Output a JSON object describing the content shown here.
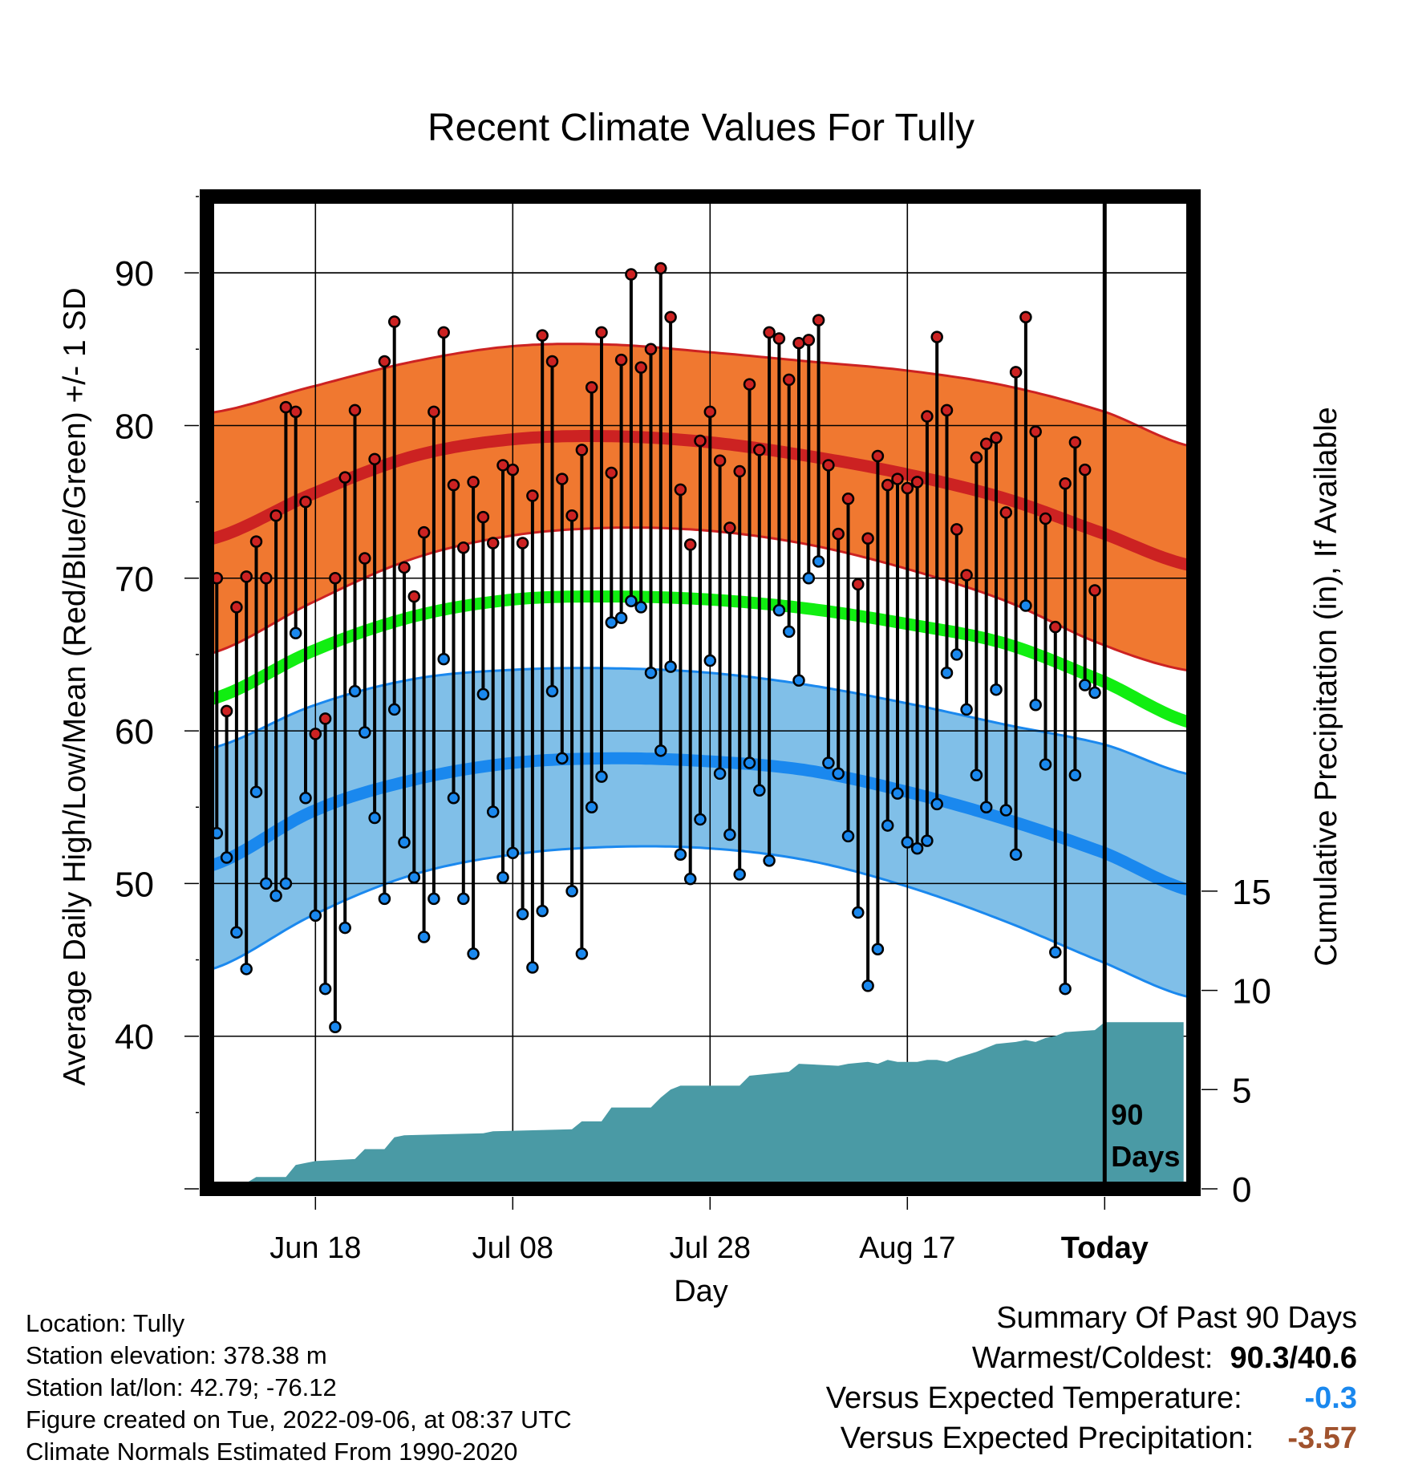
{
  "chart_data": {
    "type": "line",
    "title": "Recent Climate Values For Tully",
    "xlabel": "Day",
    "ylabel": "Average Daily High/Low/Mean (Red/Blue/Green) +/- 1 SD",
    "y2label": "Cumulative Precipitation (in), If Available",
    "ylim": [
      30,
      95
    ],
    "y2lim": [
      0,
      50
    ],
    "x_ticks": [
      {
        "day": 10,
        "label": "Jun 18"
      },
      {
        "day": 30,
        "label": "Jul 08"
      },
      {
        "day": 50,
        "label": "Jul 28"
      },
      {
        "day": 70,
        "label": "Aug 17"
      },
      {
        "day": 90,
        "label": "Today"
      }
    ],
    "y_ticks": [
      40,
      50,
      60,
      70,
      80,
      90
    ],
    "y2_ticks": [
      0,
      5,
      10,
      15
    ],
    "xlim": [
      -1,
      99
    ],
    "today_day": 90,
    "today_label": [
      "90",
      "Days"
    ],
    "series": [
      {
        "name": "Normal High",
        "color": "#cc2222",
        "band_color": "#f07830",
        "x": [
          -1,
          10,
          20,
          30,
          40,
          50,
          60,
          70,
          80,
          90,
          99
        ],
        "mean": [
          72.5,
          75.6,
          78.0,
          79.1,
          79.3,
          78.9,
          78.0,
          76.8,
          75.2,
          72.9,
          70.8
        ],
        "upper": [
          80.8,
          82.6,
          84.2,
          85.2,
          85.3,
          84.8,
          84.2,
          83.6,
          82.6,
          80.9,
          78.6
        ],
        "lower": [
          65.0,
          68.5,
          71.3,
          72.8,
          73.3,
          73.1,
          72.2,
          70.6,
          68.5,
          65.6,
          63.9
        ]
      },
      {
        "name": "Normal Mean",
        "color": "#11ee11",
        "x": [
          -1,
          10,
          20,
          30,
          40,
          50,
          60,
          70,
          80,
          90,
          99
        ],
        "mean": [
          62.0,
          65.3,
          67.5,
          68.6,
          68.8,
          68.6,
          68.0,
          67.0,
          65.7,
          63.2,
          60.5
        ]
      },
      {
        "name": "Normal Low",
        "color": "#1a88ee",
        "band_color": "#80bfe8",
        "x": [
          -1,
          10,
          20,
          30,
          40,
          50,
          60,
          70,
          80,
          90,
          99
        ],
        "mean": [
          51.1,
          54.8,
          56.8,
          57.9,
          58.2,
          58.0,
          57.4,
          56.0,
          54.2,
          52.0,
          49.5
        ],
        "upper": [
          58.8,
          61.7,
          63.4,
          64.0,
          64.1,
          63.8,
          63.0,
          61.8,
          60.4,
          59.1,
          57.1
        ],
        "lower": [
          44.3,
          48.0,
          50.6,
          51.9,
          52.4,
          52.3,
          51.5,
          49.8,
          47.5,
          44.8,
          42.5
        ]
      }
    ],
    "daily_high": [
      70.0,
      61.3,
      68.1,
      70.1,
      72.4,
      70.0,
      74.1,
      81.2,
      80.9,
      75.0,
      59.8,
      60.8,
      70.0,
      76.6,
      81.0,
      71.3,
      77.8,
      84.2,
      86.8,
      70.7,
      68.8,
      73.0,
      80.9,
      86.1,
      76.1,
      72.0,
      76.3,
      74.0,
      72.3,
      77.4,
      77.1,
      72.3,
      75.4,
      85.9,
      84.2,
      76.5,
      74.1,
      78.4,
      82.5,
      86.1,
      76.9,
      84.3,
      89.9,
      83.8,
      85.0,
      90.3,
      87.1,
      75.8,
      72.2,
      79.0,
      80.9,
      77.7,
      73.3,
      77.0,
      82.7,
      78.4,
      86.1,
      85.7,
      83.0,
      85.4,
      85.6,
      86.9,
      77.4,
      72.9,
      75.2,
      69.6,
      72.6,
      78.0,
      76.1,
      76.5,
      75.9,
      76.3,
      80.6,
      85.8,
      81.0,
      73.2,
      70.2,
      77.9,
      78.8,
      79.2,
      74.3,
      83.5,
      87.1,
      79.6,
      73.9,
      66.8,
      76.2,
      78.9,
      77.1,
      69.2
    ],
    "daily_low": [
      53.3,
      51.7,
      46.8,
      44.4,
      56.0,
      50.0,
      49.2,
      50.0,
      66.4,
      55.6,
      47.9,
      43.1,
      40.6,
      47.1,
      62.6,
      59.9,
      54.3,
      49.0,
      61.4,
      52.7,
      50.4,
      46.5,
      49.0,
      64.7,
      55.6,
      49.0,
      45.4,
      62.4,
      54.7,
      50.4,
      52.0,
      48.0,
      44.5,
      48.2,
      62.6,
      58.2,
      49.5,
      45.4,
      55.0,
      57.0,
      67.1,
      67.4,
      68.5,
      68.1,
      63.8,
      58.7,
      64.2,
      51.9,
      50.3,
      54.2,
      64.6,
      57.2,
      53.2,
      50.6,
      57.9,
      56.1,
      51.5,
      67.9,
      66.5,
      63.3,
      70.0,
      71.1,
      57.9,
      57.2,
      53.1,
      48.1,
      43.3,
      45.7,
      53.8,
      55.9,
      52.7,
      52.3,
      52.8,
      55.2,
      63.8,
      65.0,
      61.4,
      57.1,
      55.0,
      62.7,
      54.8,
      51.9,
      68.2,
      61.7,
      57.8,
      45.5,
      43.1,
      57.1,
      63.0,
      62.5
    ],
    "precip_day": [
      0,
      1,
      3,
      4,
      6,
      7,
      8,
      9,
      10,
      14,
      15,
      17,
      18,
      19,
      27,
      28,
      36,
      37,
      39,
      40,
      44,
      45,
      46,
      47,
      48,
      53,
      54,
      56,
      58,
      59,
      63,
      64,
      66,
      67,
      68,
      69,
      70,
      71,
      72,
      73,
      74,
      75,
      77,
      78,
      79,
      81,
      82,
      83,
      84,
      85,
      86,
      89,
      90,
      98
    ],
    "precip_cum": [
      0.0,
      0.3,
      0.3,
      0.6,
      0.6,
      0.6,
      1.2,
      1.3,
      1.4,
      1.5,
      2.0,
      2.0,
      2.6,
      2.7,
      2.8,
      2.9,
      3.0,
      3.4,
      3.4,
      4.1,
      4.1,
      4.6,
      5.0,
      5.2,
      5.2,
      5.2,
      5.7,
      5.8,
      5.9,
      6.3,
      6.2,
      6.3,
      6.4,
      6.3,
      6.5,
      6.4,
      6.4,
      6.4,
      6.5,
      6.5,
      6.4,
      6.6,
      6.9,
      7.1,
      7.3,
      7.4,
      7.5,
      7.4,
      7.6,
      7.7,
      7.9,
      8.0,
      8.4,
      8.4
    ]
  },
  "footer": {
    "location": "Location: Tully",
    "elevation": "Station elevation: 378.38 m",
    "latlon": "Station lat/lon: 42.79; -76.12",
    "created": "Figure created on Tue, 2022-09-06, at 08:37 UTC",
    "normals": "Climate Normals Estimated From 1990-2020"
  },
  "summary": {
    "title": "Summary Of Past 90 Days",
    "warm_cold_label": "Warmest/Coldest:",
    "warm_cold_value": "90.3/40.6",
    "temp_label": "Versus Expected Temperature:",
    "temp_value": "-0.3",
    "temp_color": "#1a88ee",
    "precip_label": "Versus Expected Precipitation:",
    "precip_value": "-3.57",
    "precip_color": "#a0522d"
  }
}
